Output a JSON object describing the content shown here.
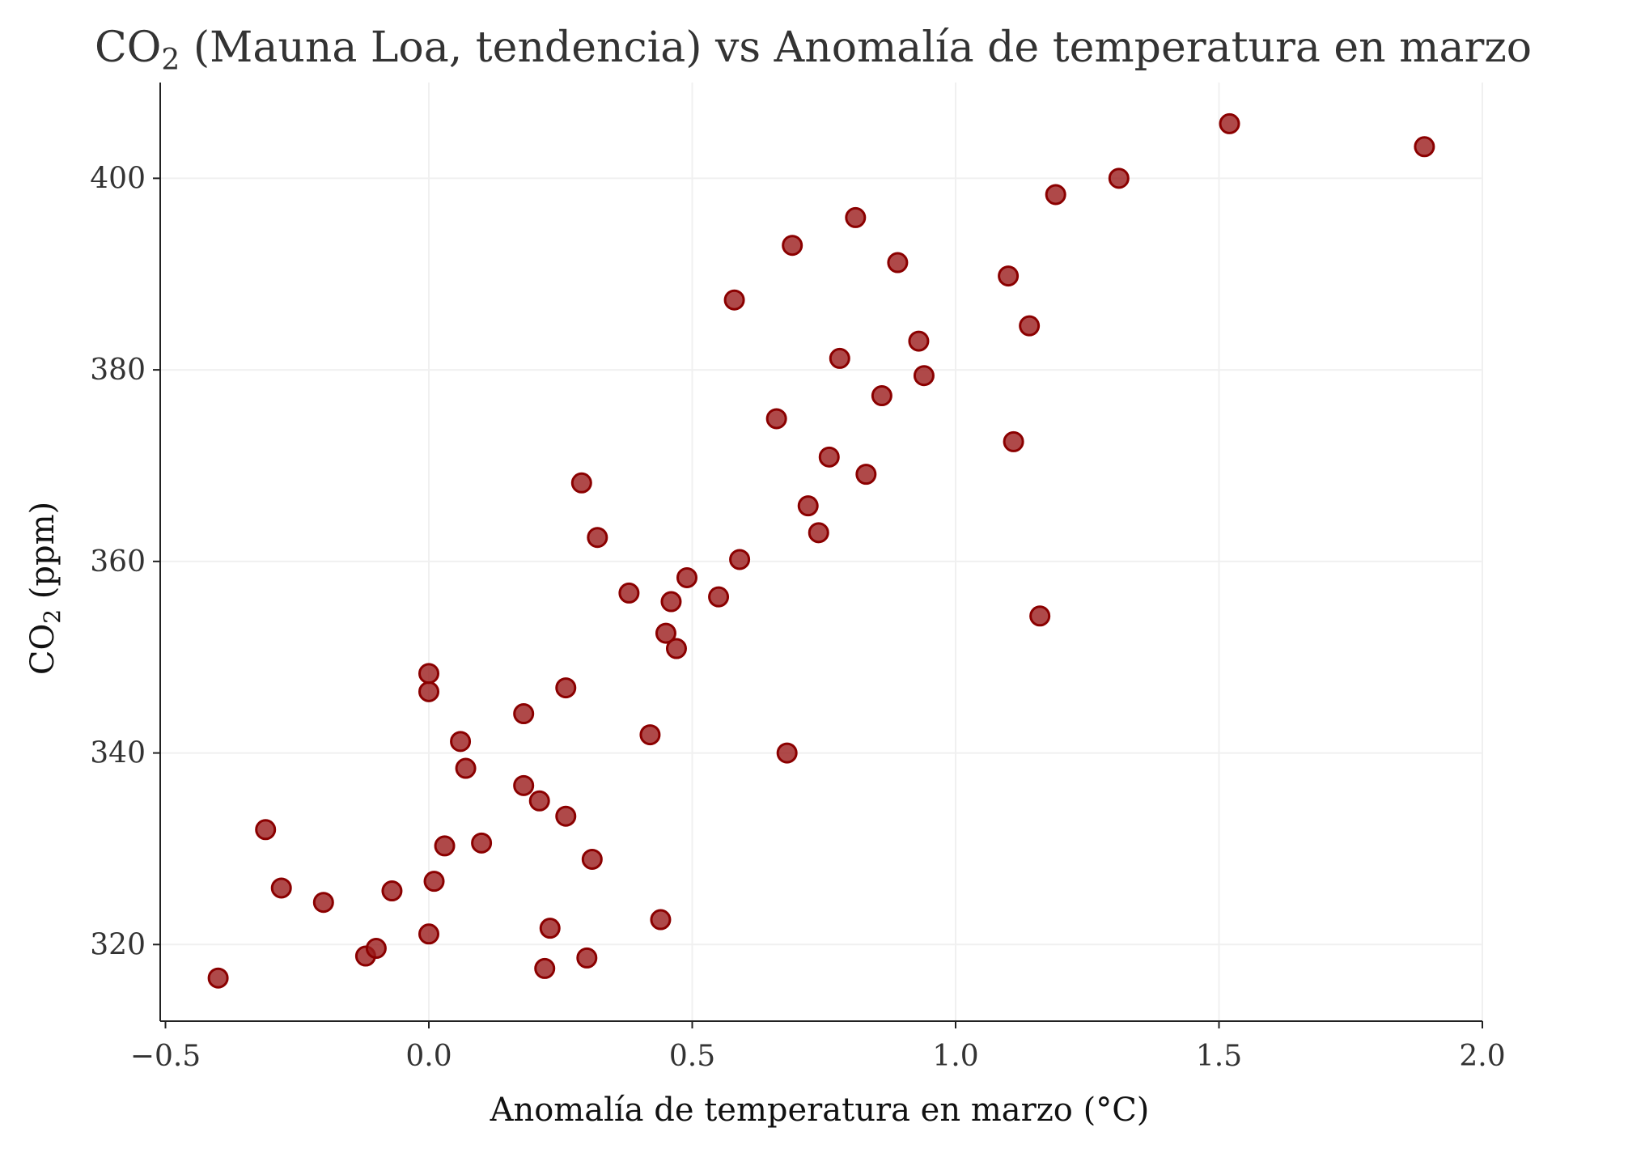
{
  "chart_data": {
    "type": "scatter",
    "title": "CO₂ (Mauna Loa, tendencia) vs Anomalía de temperatura en marzo",
    "title_main": "CO",
    "title_sub": "2",
    "title_rest": " (Mauna Loa, tendencia) vs Anomalía de temperatura en marzo",
    "xlabel": "Anomalía de temperatura en marzo (°C)",
    "ylabel": "CO₂ (ppm)",
    "ylabel_main": "CO",
    "ylabel_sub": "2",
    "ylabel_rest": " (ppm)",
    "xlim": [
      -0.51,
      2.0
    ],
    "ylim": [
      312,
      410
    ],
    "xticks": [
      -0.5,
      0.0,
      0.5,
      1.0,
      1.5,
      2.0
    ],
    "xtick_labels": [
      "−0.5",
      "0.0",
      "0.5",
      "1.0",
      "1.5",
      "2.0"
    ],
    "yticks": [
      320,
      340,
      360,
      380,
      400
    ],
    "ytick_labels": [
      "320",
      "340",
      "360",
      "380",
      "400"
    ],
    "grid": true,
    "colors": {
      "point_fill": "#9b1c1c",
      "point_stroke": "#8b0000"
    },
    "x": [
      -0.4,
      -0.31,
      -0.28,
      -0.2,
      -0.12,
      -0.1,
      -0.07,
      0.0,
      0.01,
      0.03,
      0.0,
      0.0,
      0.06,
      0.07,
      0.1,
      0.18,
      0.18,
      0.21,
      0.22,
      0.23,
      0.26,
      0.26,
      0.29,
      0.3,
      0.31,
      0.32,
      0.38,
      0.42,
      0.44,
      0.45,
      0.46,
      0.47,
      0.49,
      0.55,
      0.58,
      0.59,
      0.66,
      0.68,
      0.69,
      0.72,
      0.74,
      0.76,
      0.78,
      0.81,
      0.83,
      0.86,
      0.89,
      0.93,
      0.94,
      1.1,
      1.11,
      1.14,
      1.16,
      1.19,
      1.31,
      1.52,
      1.89
    ],
    "y": [
      316.5,
      332.0,
      325.9,
      324.4,
      318.8,
      319.6,
      325.6,
      321.1,
      326.6,
      330.3,
      346.4,
      348.3,
      341.2,
      338.4,
      330.6,
      344.1,
      336.6,
      335.0,
      317.5,
      321.7,
      346.8,
      333.4,
      368.2,
      318.6,
      328.9,
      362.5,
      356.7,
      341.9,
      322.6,
      352.5,
      355.8,
      350.9,
      358.3,
      356.3,
      387.3,
      360.2,
      374.9,
      340.0,
      393.0,
      365.8,
      363.0,
      370.9,
      381.2,
      395.9,
      369.1,
      377.3,
      391.2,
      383.0,
      379.4,
      389.8,
      372.5,
      384.6,
      354.3,
      398.3,
      400.0,
      405.7,
      403.3
    ]
  }
}
